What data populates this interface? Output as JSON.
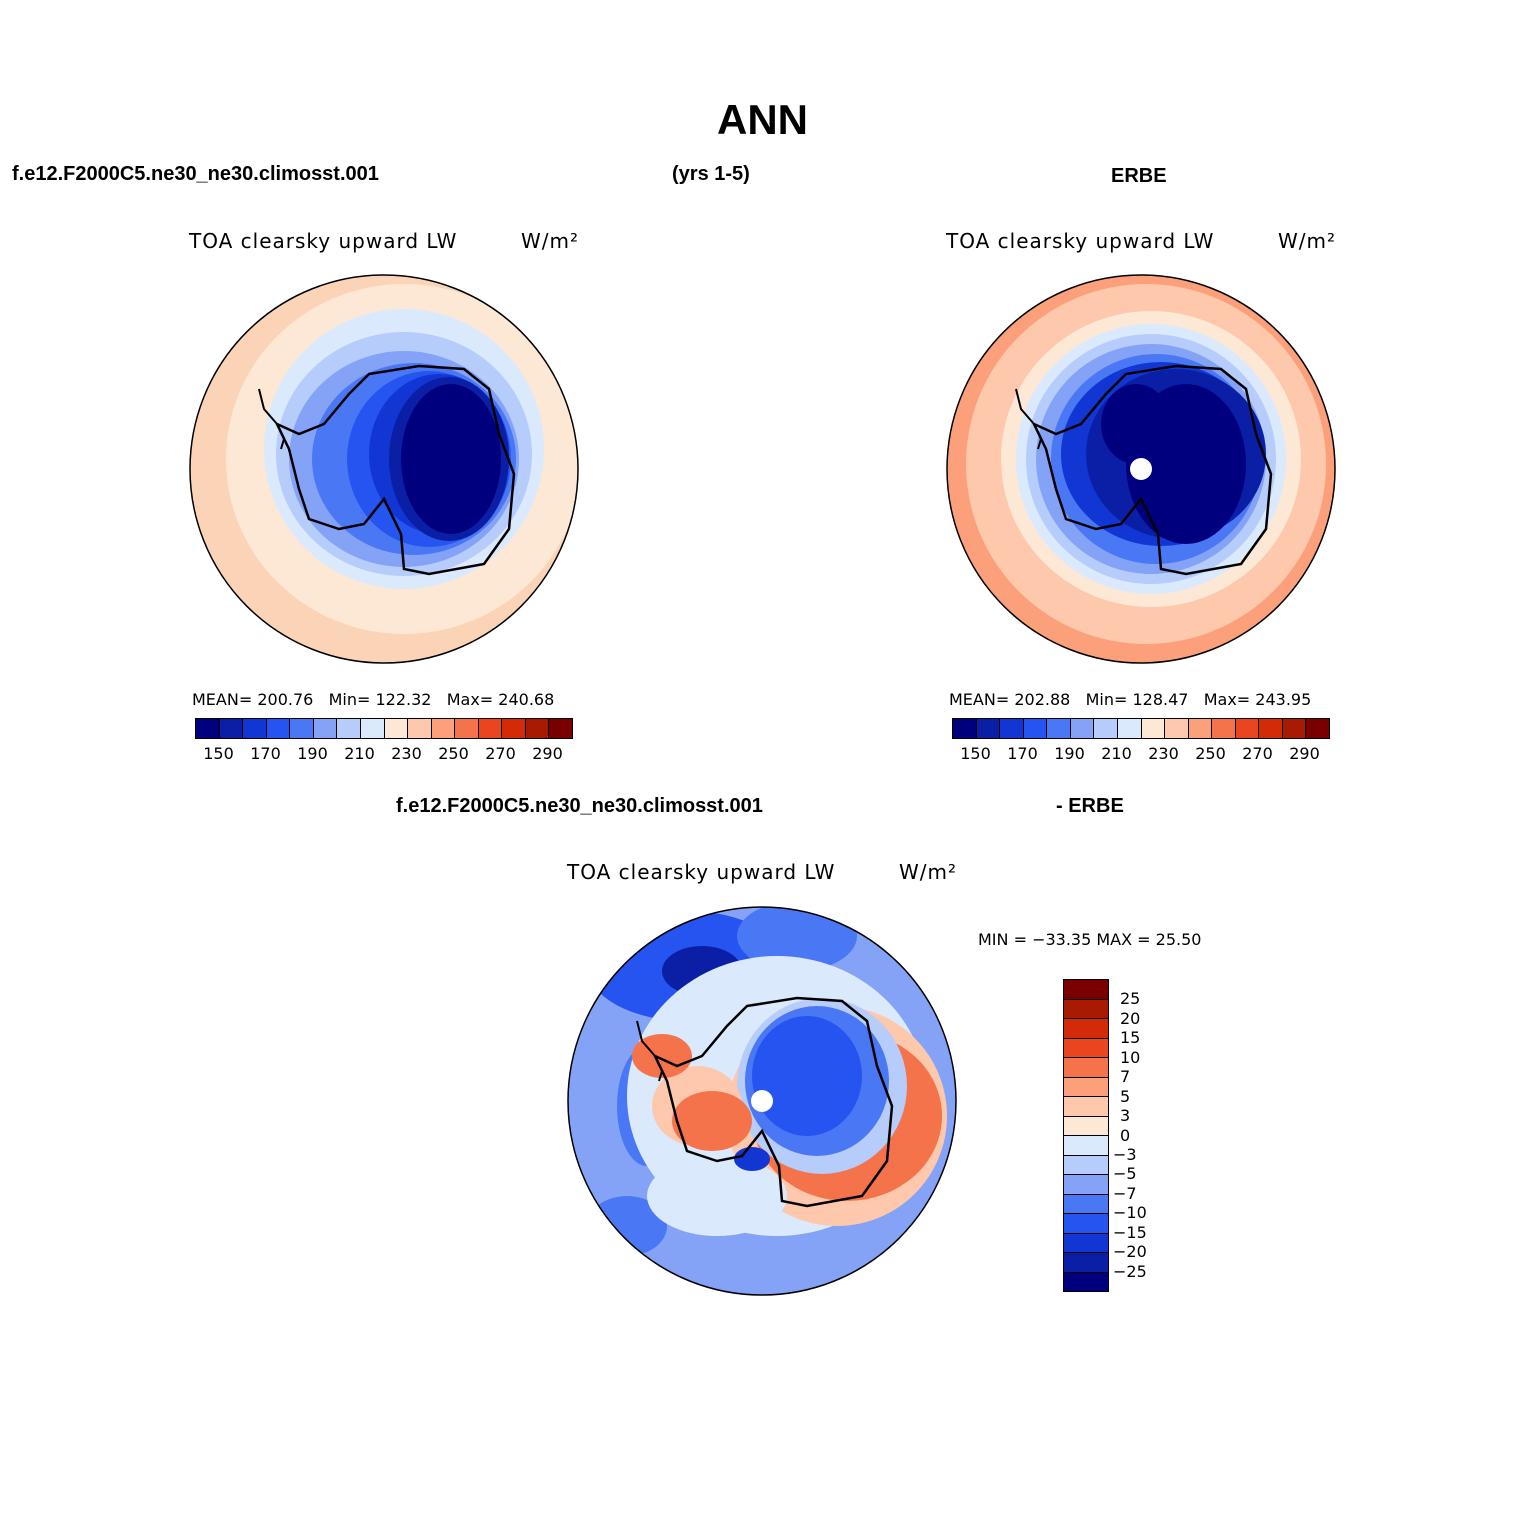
{
  "title": "ANN",
  "header": {
    "case_name": "f.e12.F2000C5.ne30_ne30.climosst.001",
    "years": "(yrs 1-5)",
    "obs_name": "ERBE"
  },
  "panels": {
    "model": {
      "variable": "TOA clearsky upward LW",
      "units": "W/m²",
      "mean_label": "MEAN=",
      "mean": "200.76",
      "min_label": "Min=",
      "min": "122.32",
      "max_label": "Max=",
      "max": "240.68"
    },
    "obs": {
      "variable": "TOA clearsky upward LW",
      "units": "W/m²",
      "mean_label": "MEAN=",
      "mean": "202.88",
      "min_label": "Min=",
      "min": "128.47",
      "max_label": "Max=",
      "max": "243.95"
    },
    "diff": {
      "case_name": "f.e12.F2000C5.ne30_ne30.climosst.001",
      "obs_name": "- ERBE",
      "variable": "TOA clearsky upward LW",
      "units": "W/m²",
      "minmax_text": "MIN = −33.35 MAX =   25.50"
    }
  },
  "colorbar_abs": {
    "colors": [
      "#00007f",
      "#0a1fa6",
      "#1136d4",
      "#2554f0",
      "#4a78f5",
      "#84a3f7",
      "#b6ccfb",
      "#dbe9fd",
      "#fde8d6",
      "#fdc8ab",
      "#fba07a",
      "#f4734a",
      "#e9451f",
      "#d32b08",
      "#a81a02",
      "#7a0000"
    ],
    "ticks": [
      "150",
      "170",
      "190",
      "210",
      "230",
      "250",
      "270",
      "290"
    ]
  },
  "colorbar_diff": {
    "colors": [
      "#7a0000",
      "#a81a02",
      "#d32b08",
      "#e9451f",
      "#f4734a",
      "#fba07a",
      "#fdc8ab",
      "#fde8d6",
      "#dbe9fd",
      "#b6ccfb",
      "#84a3f7",
      "#4a78f5",
      "#2554f0",
      "#1136d4",
      "#0a1fa6",
      "#00007f"
    ],
    "ticks": [
      "25",
      "20",
      "15",
      "10",
      "7",
      "5",
      "3",
      "0",
      "−3",
      "−5",
      "−7",
      "−10",
      "−15",
      "−20",
      "−25"
    ]
  }
}
